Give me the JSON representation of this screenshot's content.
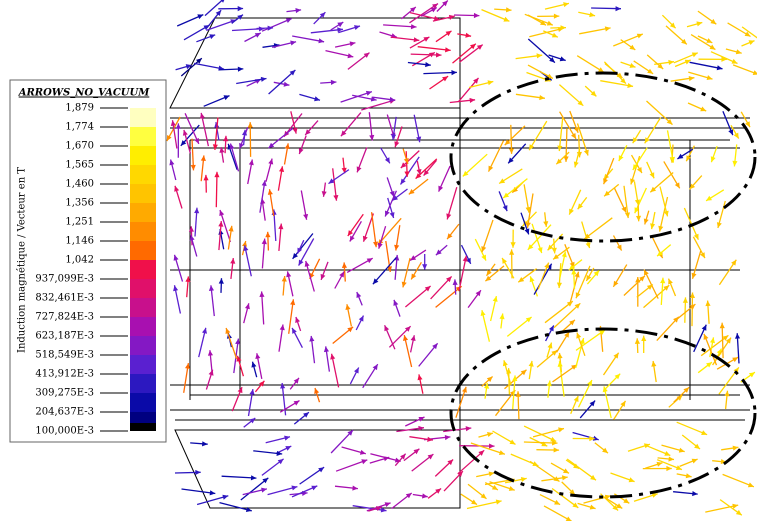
{
  "legend": {
    "title": "ARROWS_NO_VACUUM",
    "axis_label": "Induction magnétique / Vecteur en T",
    "levels": [
      "1,879",
      "1,774",
      "1,670",
      "1,565",
      "1,460",
      "1,356",
      "1,251",
      "1,146",
      "1,042",
      "937,099E-3",
      "832,461E-3",
      "727,824E-3",
      "623,187E-3",
      "518,549E-3",
      "413,912E-3",
      "309,275E-3",
      "204,637E-3",
      "100,000E-3"
    ],
    "colors": [
      "#ffffc0",
      "#ffff40",
      "#ffee00",
      "#ffd800",
      "#ffc400",
      "#ffaa00",
      "#ff8c00",
      "#ff6a00",
      "#f0104a",
      "#e0106a",
      "#c8108c",
      "#a810b0",
      "#8418c4",
      "#5a20d0",
      "#2c18c0",
      "#0a0aa8",
      "#000080"
    ]
  }
}
